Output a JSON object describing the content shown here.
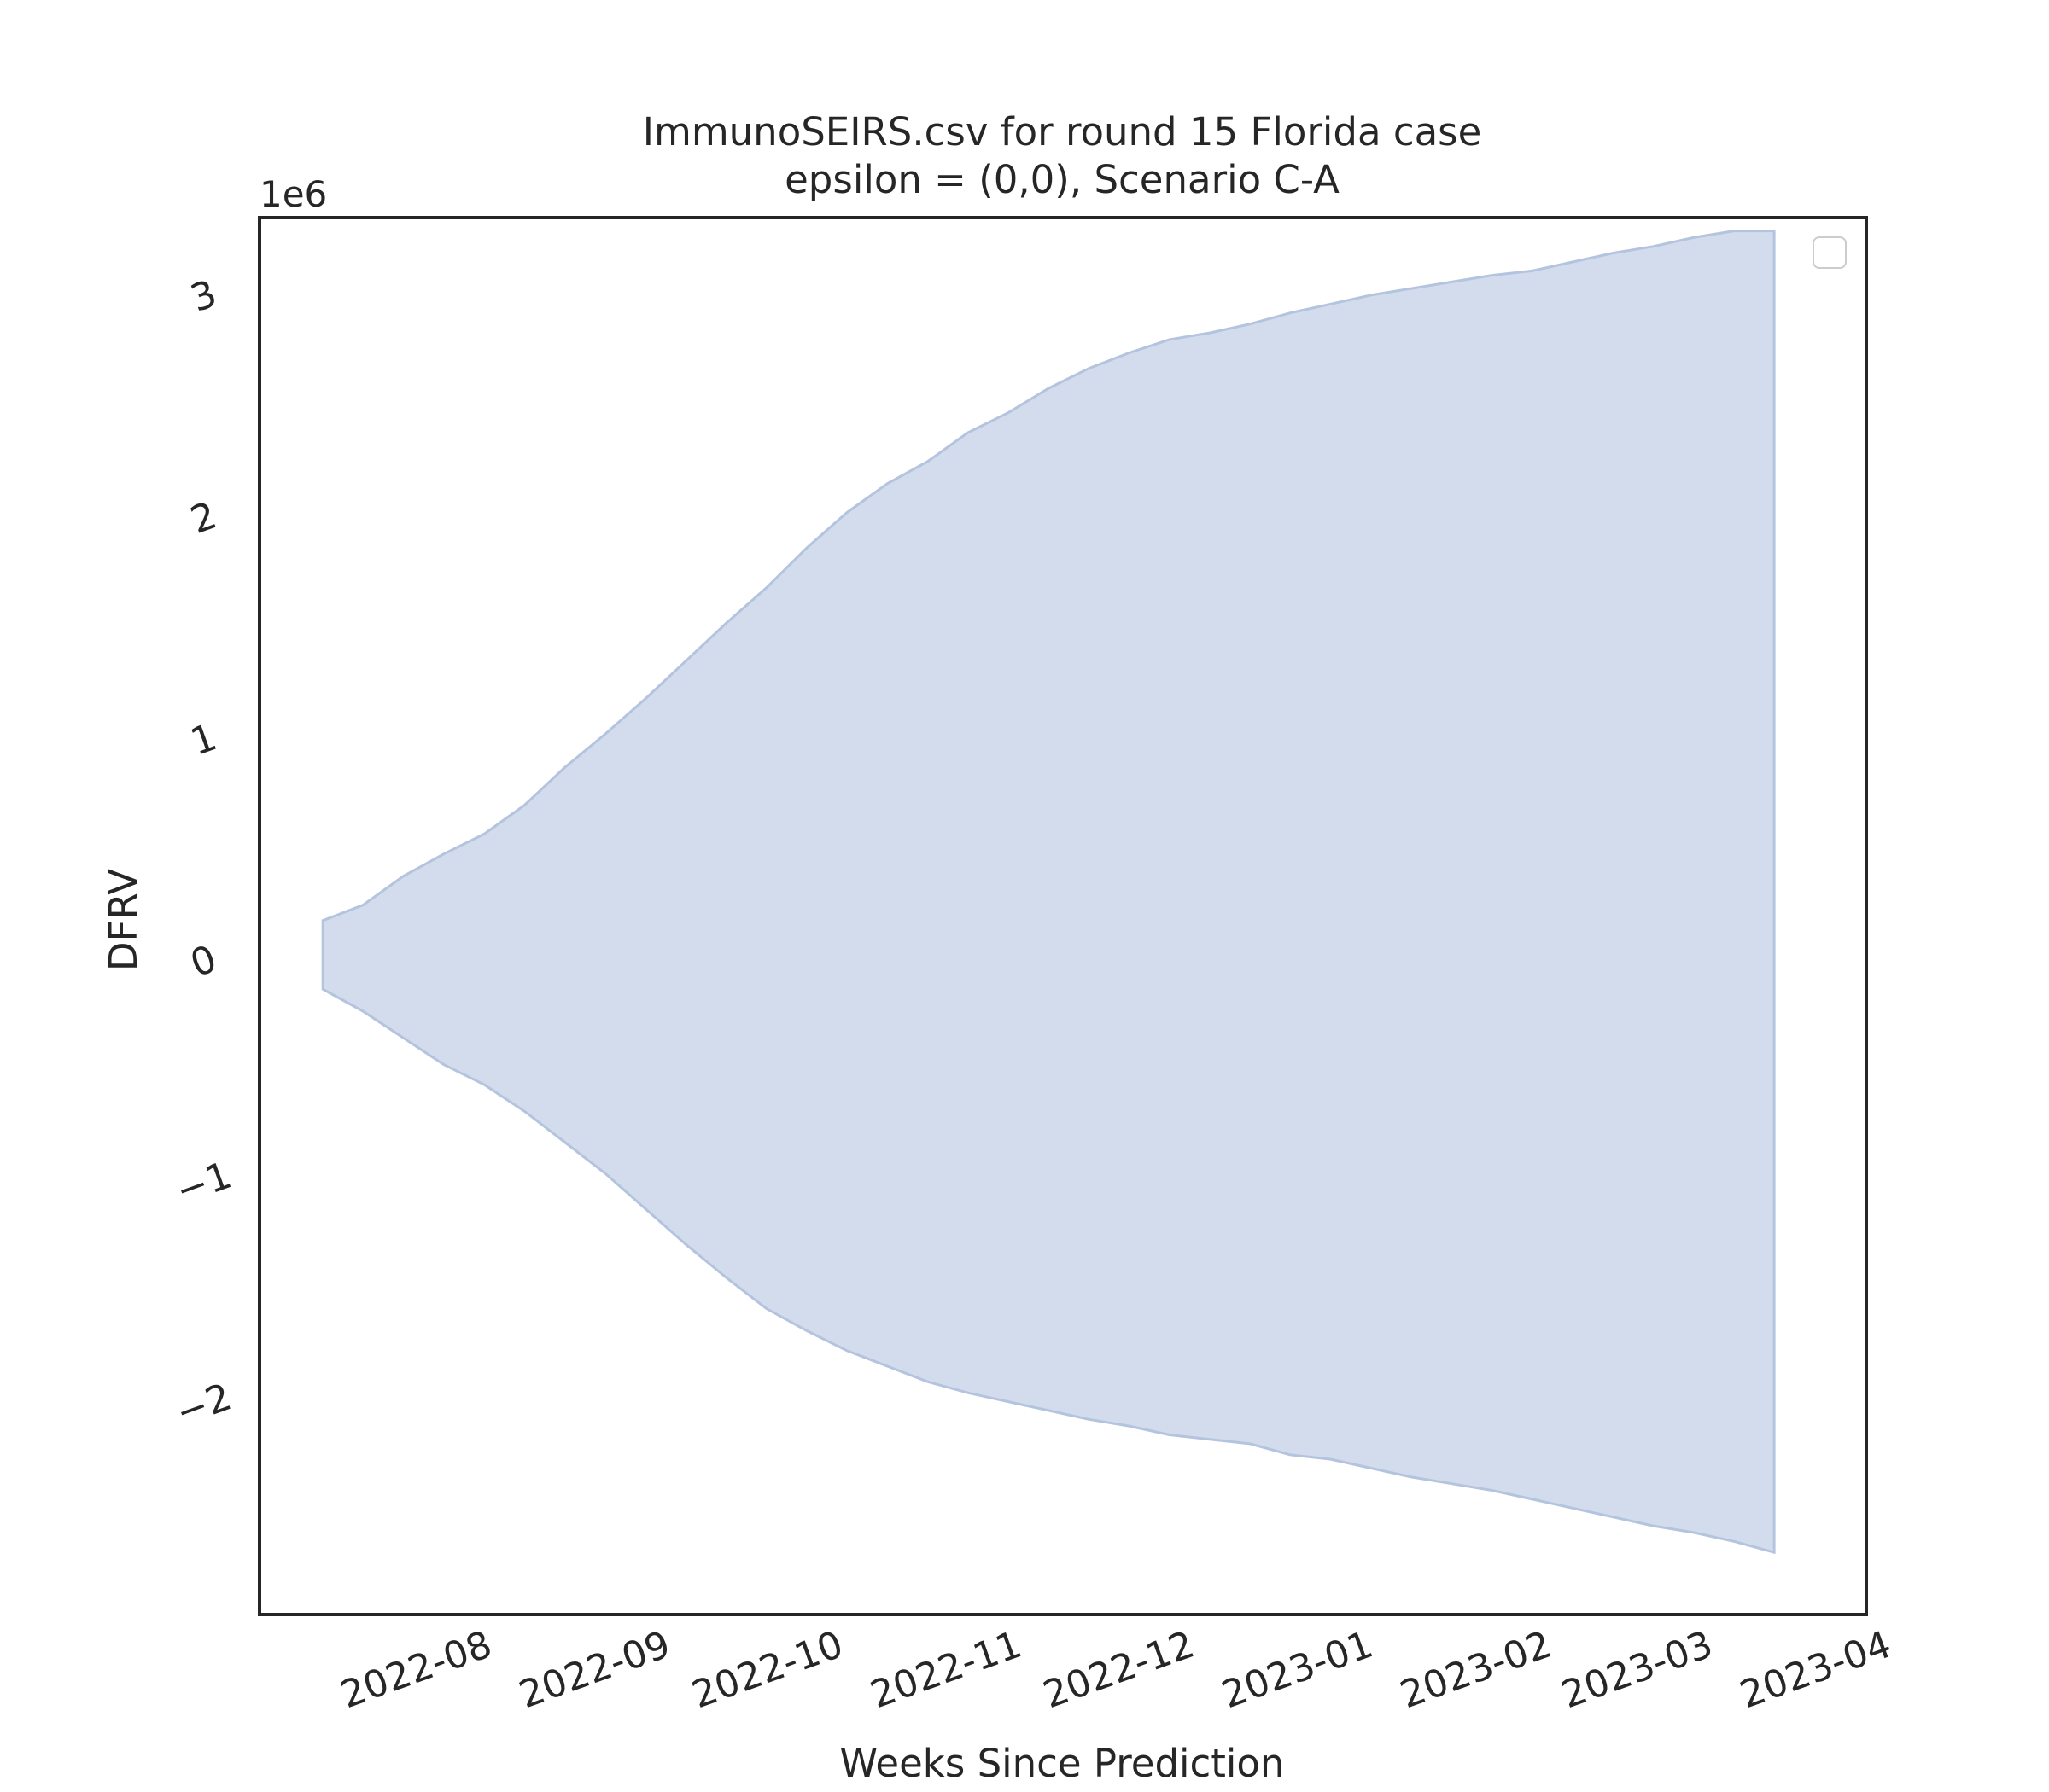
{
  "chart_data": {
    "type": "area",
    "title": [
      "ImmunoSEIRS.csv for round 15 Florida case",
      "epsilon = (0,0), Scenario C-A"
    ],
    "xlabel": "Weeks Since Prediction",
    "ylabel": "DFRV",
    "y_offset_label": "1e6",
    "y_scale": 1000000,
    "x_axis": "date",
    "xlim": [
      "2022-07-05",
      "2023-04-10"
    ],
    "ylim": [
      -2.95,
      3.35
    ],
    "x_ticks": [
      "2022-08-01",
      "2022-09-01",
      "2022-10-01",
      "2022-11-01",
      "2022-12-01",
      "2023-01-01",
      "2023-02-01",
      "2023-03-01",
      "2023-04-01"
    ],
    "x_tick_labels": [
      "2022-08",
      "2022-09",
      "2022-10",
      "2022-11",
      "2022-12",
      "2023-01",
      "2023-02",
      "2023-03",
      "2023-04"
    ],
    "y_ticks": [
      -2,
      -1,
      0,
      1,
      2,
      3
    ],
    "y_tick_labels": [
      "−2",
      "−1",
      "0",
      "1",
      "2",
      "3"
    ],
    "grid": false,
    "legend": {
      "placement": "top-right",
      "entries": []
    },
    "fill_color": "#b4c4df",
    "series": [
      {
        "dates": [
          "2022-07-16",
          "2022-07-23",
          "2022-07-30",
          "2022-08-06",
          "2022-08-13",
          "2022-08-20",
          "2022-08-27",
          "2022-09-03",
          "2022-09-10",
          "2022-09-17",
          "2022-09-24",
          "2022-10-01",
          "2022-10-08",
          "2022-10-15",
          "2022-10-22",
          "2022-10-29",
          "2022-11-05",
          "2022-11-12",
          "2022-11-19",
          "2022-11-26",
          "2022-12-03",
          "2022-12-10",
          "2022-12-17",
          "2022-12-24",
          "2022-12-31",
          "2023-01-07",
          "2023-01-14",
          "2023-01-21",
          "2023-01-28",
          "2023-02-04",
          "2023-02-11",
          "2023-02-18",
          "2023-02-25",
          "2023-03-04",
          "2023-03-11",
          "2023-03-18",
          "2023-03-25"
        ],
        "upper": [
          0.18,
          0.25,
          0.38,
          0.48,
          0.57,
          0.7,
          0.87,
          1.02,
          1.18,
          1.35,
          1.52,
          1.68,
          1.86,
          2.02,
          2.15,
          2.25,
          2.38,
          2.47,
          2.58,
          2.67,
          2.74,
          2.8,
          2.83,
          2.87,
          2.92,
          2.96,
          3.0,
          3.03,
          3.06,
          3.09,
          3.11,
          3.15,
          3.19,
          3.22,
          3.26,
          3.29,
          3.29
        ],
        "lower": [
          -0.13,
          -0.23,
          -0.35,
          -0.47,
          -0.56,
          -0.68,
          -0.82,
          -0.96,
          -1.12,
          -1.28,
          -1.43,
          -1.57,
          -1.67,
          -1.76,
          -1.83,
          -1.9,
          -1.95,
          -1.99,
          -2.03,
          -2.07,
          -2.1,
          -2.14,
          -2.16,
          -2.18,
          -2.23,
          -2.25,
          -2.29,
          -2.33,
          -2.36,
          -2.39,
          -2.43,
          -2.47,
          -2.51,
          -2.55,
          -2.58,
          -2.62,
          -2.67
        ]
      }
    ]
  }
}
